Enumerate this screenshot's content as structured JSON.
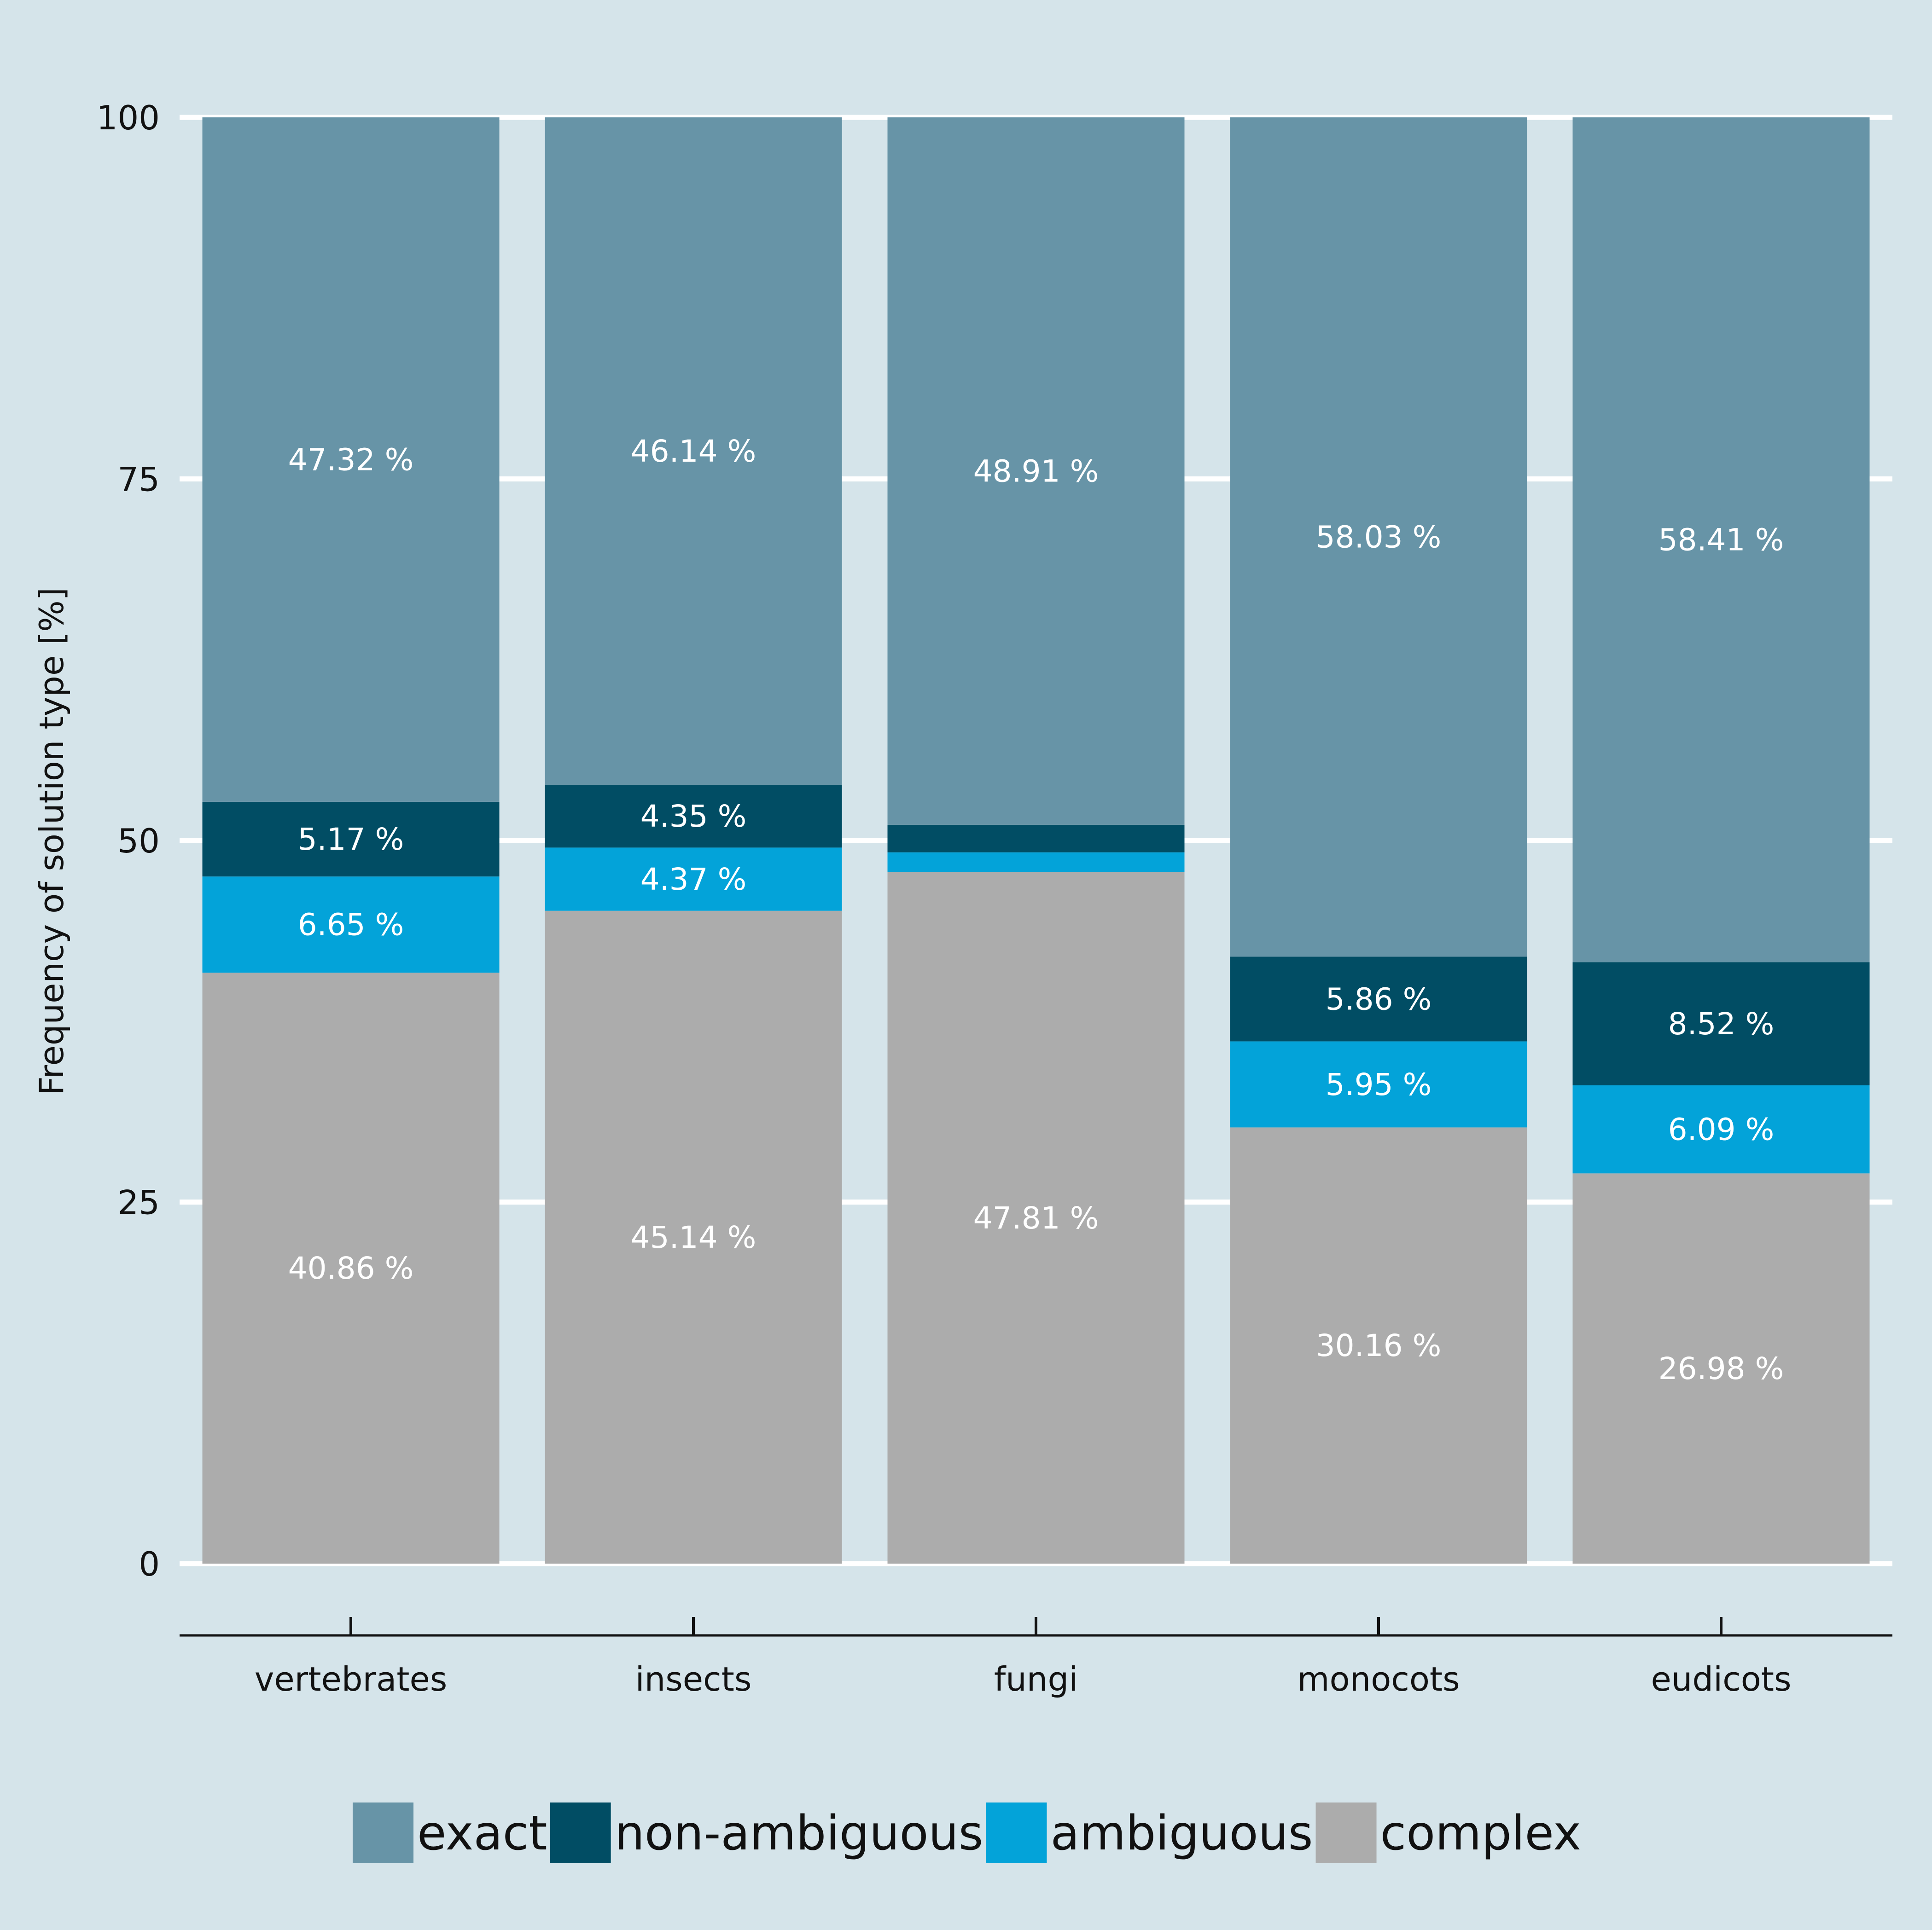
{
  "chart_data": {
    "type": "bar",
    "stacked": true,
    "title": "",
    "xlabel": "",
    "ylabel": "Frequency of solution type [%]",
    "ylim": [
      0,
      100
    ],
    "yticks": [
      0,
      25,
      50,
      75,
      100
    ],
    "grid": "horizontal",
    "legend_position": "bottom",
    "categories": [
      "vertebrates",
      "insects",
      "fungi",
      "monocots",
      "eudicots"
    ],
    "series": [
      {
        "name": "complex",
        "color": "#acacac",
        "values": [
          40.86,
          45.14,
          47.81,
          30.16,
          26.98
        ],
        "labels": [
          "40.86 %",
          "45.14 %",
          "47.81 %",
          "30.16 %",
          "26.98 %"
        ]
      },
      {
        "name": "ambiguous",
        "color": "#03a3d9",
        "values": [
          6.65,
          4.37,
          1.37,
          5.95,
          6.09
        ],
        "labels": [
          "6.65 %",
          "4.37 %",
          "",
          "5.95 %",
          "6.09 %"
        ]
      },
      {
        "name": "non-ambiguous",
        "color": "#014d64",
        "values": [
          5.17,
          4.35,
          1.91,
          5.86,
          8.52
        ],
        "labels": [
          "5.17 %",
          "4.35 %",
          "",
          "5.86 %",
          "8.52 %"
        ]
      },
      {
        "name": "exact",
        "color": "#6794a7",
        "values": [
          47.32,
          46.14,
          48.91,
          58.03,
          58.41
        ],
        "labels": [
          "47.32 %",
          "46.14 %",
          "48.91 %",
          "58.03 %",
          "58.41 %"
        ]
      }
    ],
    "legend_order": [
      "exact",
      "non-ambiguous",
      "ambiguous",
      "complex"
    ]
  }
}
